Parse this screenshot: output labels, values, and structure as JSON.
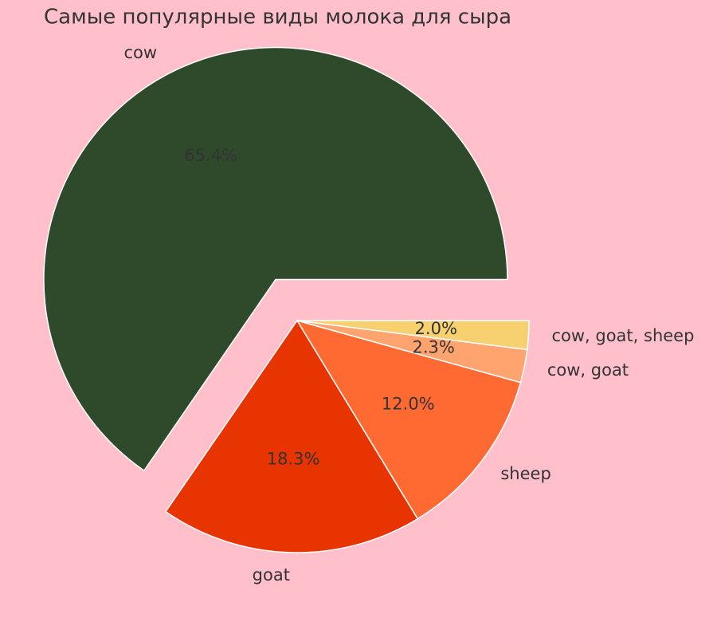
{
  "chart_data": {
    "type": "pie",
    "title": "Самые популярные виды молока для сыра",
    "categories": [
      "cow",
      "goat",
      "sheep",
      "cow, goat",
      "cow, goat, sheep"
    ],
    "values": [
      65.4,
      18.3,
      12.0,
      2.3,
      2.0
    ],
    "value_labels": [
      "65.4%",
      "18.3%",
      "12.0%",
      "2.3%",
      "2.0%"
    ],
    "colors": [
      "#2e4a2a",
      "#e83400",
      "#ff6a33",
      "#ffa46e",
      "#f7d070"
    ],
    "explode": [
      0.2,
      0,
      0,
      0,
      0
    ]
  }
}
